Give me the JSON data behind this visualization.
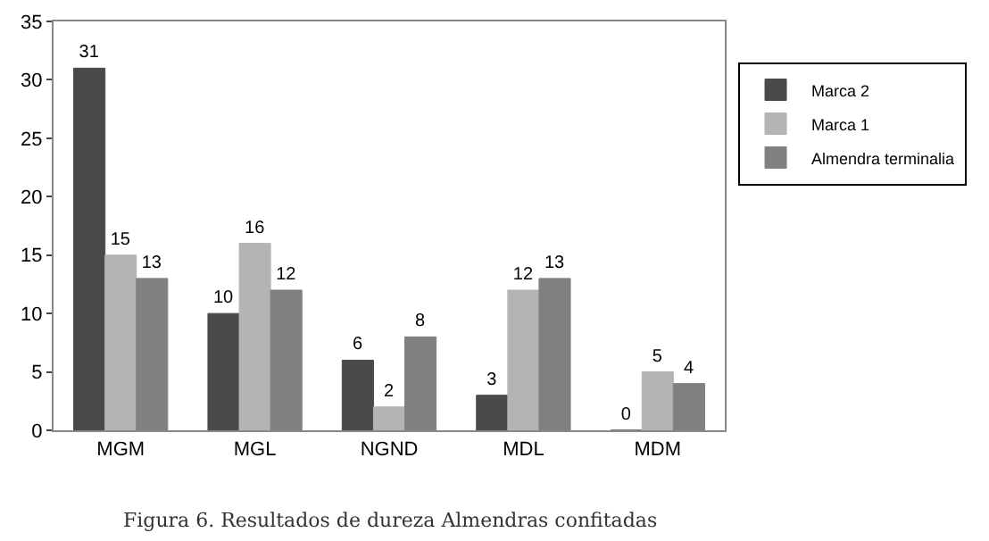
{
  "chart_data": {
    "type": "bar",
    "categories": [
      "MGM",
      "MGL",
      "NGND",
      "MDL",
      "MDM"
    ],
    "series": [
      {
        "name": "Marca 2",
        "color": "#4a4a4a",
        "values": [
          31,
          10,
          6,
          3,
          0
        ]
      },
      {
        "name": "Marca 1",
        "color": "#b4b4b4",
        "values": [
          15,
          16,
          2,
          12,
          5
        ]
      },
      {
        "name": "Almendra terminalia",
        "color": "#808080",
        "values": [
          13,
          12,
          8,
          13,
          4
        ]
      }
    ],
    "ylim": [
      0,
      35
    ],
    "yticks": [
      0,
      5,
      10,
      15,
      20,
      25,
      30,
      35
    ],
    "grid": false,
    "legend": "right",
    "data_labels": true,
    "annotations": [
      "Figura 6. Resultados de dureza Almendras confitadas"
    ]
  }
}
